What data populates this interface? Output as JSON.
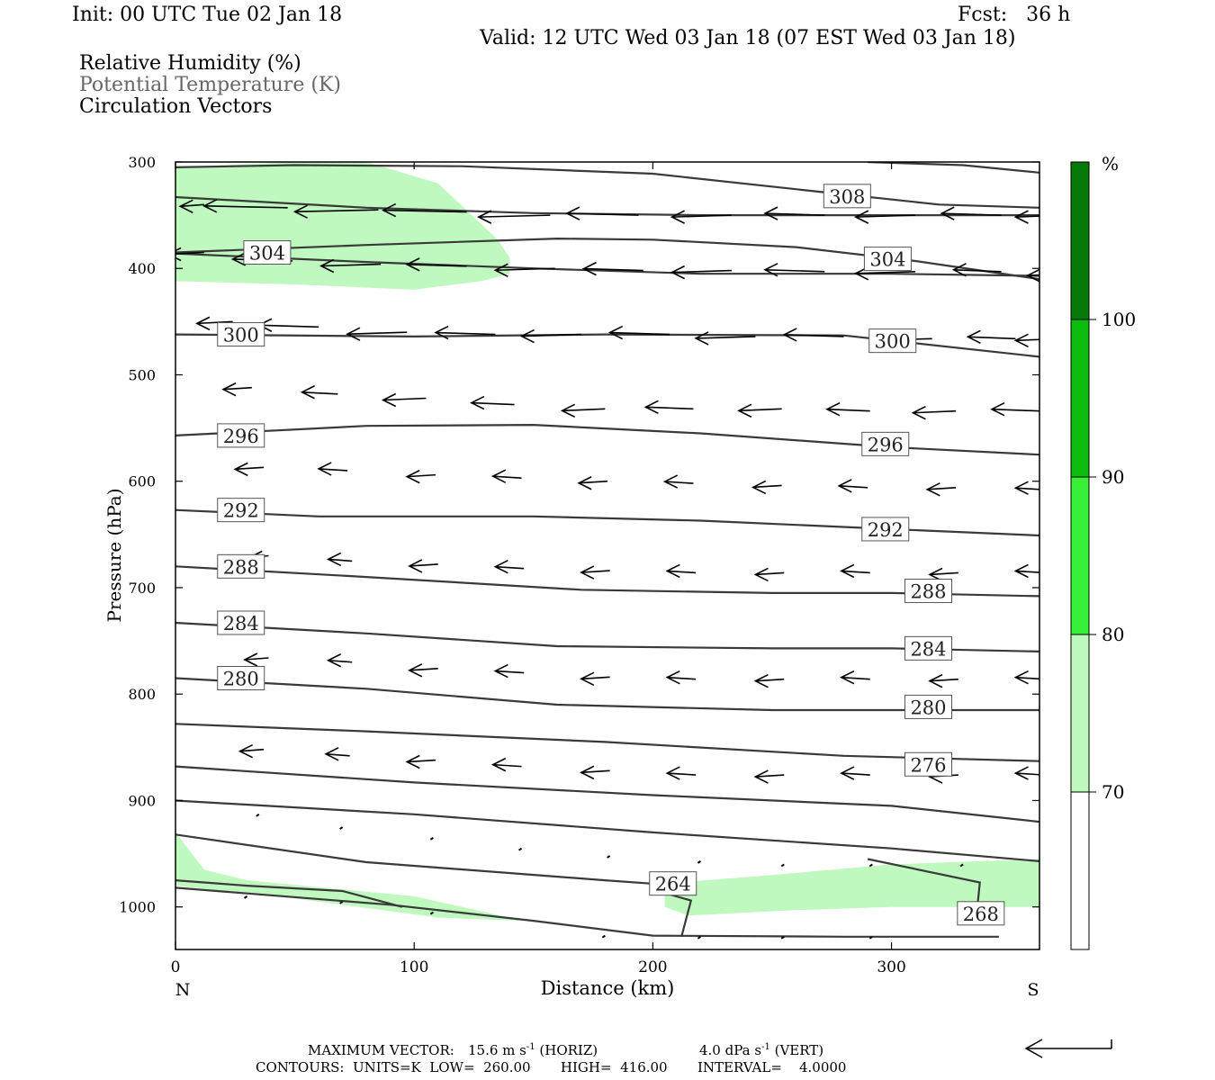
{
  "header": {
    "init": "Init: 00 UTC Tue 02 Jan 18",
    "fcst": "Fcst:   36 h",
    "valid": "Valid: 12 UTC Wed 03 Jan 18 (07 EST Wed 03 Jan 18)"
  },
  "fields": [
    "Relative Humidity (%)",
    "Potential Temperature (K)",
    "Circulation Vectors"
  ],
  "footer": {
    "max_vector_label": "MAXIMUM VECTOR:",
    "max_vector_horiz": "15.6 m s",
    "horiz_tag": "(HORIZ)",
    "max_vector_vert": "4.0 dPa s",
    "vert_tag": "(VERT)",
    "exp": "-1",
    "contours": "CONTOURS:  UNITS=K  LOW=  260.00       HIGH=  416.00       INTERVAL=    4.0000"
  },
  "colors": {
    "rh_70_80": "#bff9bf",
    "rh_80_90": "#39f039",
    "rh_90_100": "#0cbc0c",
    "rh_100_plus": "#05790a",
    "contour": "#3a3a3a"
  },
  "chart_data": {
    "type": "cross-section",
    "xlabel": "Distance (km)",
    "ylabel": "Pressure (hPa)",
    "xlim": [
      0,
      362
    ],
    "ylim": [
      1040,
      300
    ],
    "x_ticks": [
      0,
      100,
      200,
      300
    ],
    "y_ticks": [
      300,
      400,
      500,
      600,
      700,
      800,
      900,
      1000
    ],
    "x_end_labels": [
      "N",
      "S"
    ],
    "colorbar": {
      "unit": "%",
      "ticks": [
        70,
        80,
        90,
        100
      ],
      "colors": [
        "#ffffff",
        "#bff9bf",
        "#39f039",
        "#0cbc0c",
        "#05790a"
      ]
    },
    "rh_regions": [
      {
        "level": "70-80",
        "points": [
          [
            0,
            305
          ],
          [
            50,
            300
          ],
          [
            80,
            300
          ],
          [
            110,
            320
          ],
          [
            135,
            373
          ],
          [
            140,
            390
          ],
          [
            140,
            405
          ],
          [
            128,
            412
          ],
          [
            100,
            420
          ],
          [
            50,
            415
          ],
          [
            0,
            412
          ]
        ]
      },
      {
        "level": "70-80",
        "points": [
          [
            0,
            930
          ],
          [
            12,
            965
          ],
          [
            30,
            975
          ],
          [
            100,
            990
          ],
          [
            140,
            1010
          ],
          [
            145,
            1013
          ],
          [
            110,
            1010
          ],
          [
            50,
            992
          ],
          [
            0,
            980
          ]
        ]
      },
      {
        "level": "70-80",
        "points": [
          [
            205,
            978
          ],
          [
            250,
            970
          ],
          [
            300,
            960
          ],
          [
            362,
            955
          ],
          [
            362,
            1000
          ],
          [
            330,
            1000
          ],
          [
            300,
            1000
          ],
          [
            260,
            1003
          ],
          [
            215,
            1008
          ],
          [
            205,
            1000
          ]
        ]
      }
    ],
    "theta_contours": [
      {
        "label": "308",
        "label_at": [
          272,
          332
        ],
        "points": [
          [
            0,
            305
          ],
          [
            50,
            303
          ],
          [
            120,
            304
          ],
          [
            200,
            311
          ],
          [
            270,
            328
          ],
          [
            320,
            340
          ],
          [
            362,
            343
          ]
        ]
      },
      {
        "label": "",
        "label_at": null,
        "points": [
          [
            290,
            300
          ],
          [
            330,
            303
          ],
          [
            362,
            310
          ]
        ]
      },
      {
        "label": "",
        "label_at": null,
        "points": [
          [
            0,
            333
          ],
          [
            80,
            343
          ],
          [
            150,
            348
          ],
          [
            220,
            350
          ],
          [
            300,
            350
          ],
          [
            362,
            350
          ]
        ]
      },
      {
        "label": "304",
        "label_at": [
          29,
          385
        ],
        "points": [
          [
            0,
            385
          ],
          [
            80,
            378
          ],
          [
            160,
            372
          ],
          [
            200,
            373
          ],
          [
            260,
            380
          ],
          [
            310,
            393
          ],
          [
            362,
            410
          ]
        ]
      },
      {
        "label": "304",
        "label_at": [
          289,
          391
        ],
        "points": [
          [
            0,
            386
          ],
          [
            80,
            394
          ],
          [
            150,
            400
          ],
          [
            220,
            405
          ],
          [
            300,
            405
          ],
          [
            362,
            407
          ]
        ]
      },
      {
        "label": "300",
        "label_at": [
          18,
          462
        ],
        "points": [
          [
            0,
            462
          ],
          [
            100,
            464
          ],
          [
            180,
            462
          ],
          [
            280,
            463
          ],
          [
            362,
            483
          ]
        ]
      },
      {
        "label": "300",
        "label_at": [
          291,
          468
        ],
        "points": []
      },
      {
        "label": "296",
        "label_at": [
          18,
          557
        ],
        "points": [
          [
            0,
            557
          ],
          [
            80,
            548
          ],
          [
            150,
            547
          ],
          [
            220,
            555
          ],
          [
            300,
            568
          ],
          [
            362,
            575
          ]
        ]
      },
      {
        "label": "296",
        "label_at": [
          288,
          565
        ],
        "points": []
      },
      {
        "label": "292",
        "label_at": [
          18,
          627
        ],
        "points": [
          [
            0,
            627
          ],
          [
            60,
            633
          ],
          [
            150,
            633
          ],
          [
            220,
            637
          ],
          [
            300,
            645
          ],
          [
            362,
            651
          ]
        ]
      },
      {
        "label": "292",
        "label_at": [
          288,
          645
        ],
        "points": []
      },
      {
        "label": "288",
        "label_at": [
          18,
          680
        ],
        "points": [
          [
            0,
            680
          ],
          [
            80,
            690
          ],
          [
            170,
            702
          ],
          [
            250,
            705
          ],
          [
            300,
            705
          ],
          [
            362,
            708
          ]
        ]
      },
      {
        "label": "288",
        "label_at": [
          306,
          703
        ],
        "points": []
      },
      {
        "label": "284",
        "label_at": [
          18,
          733
        ],
        "points": [
          [
            0,
            733
          ],
          [
            80,
            743
          ],
          [
            160,
            755
          ],
          [
            250,
            757
          ],
          [
            300,
            757
          ],
          [
            362,
            760
          ]
        ]
      },
      {
        "label": "284",
        "label_at": [
          306,
          757
        ],
        "points": []
      },
      {
        "label": "280",
        "label_at": [
          18,
          785
        ],
        "points": [
          [
            0,
            785
          ],
          [
            80,
            795
          ],
          [
            160,
            810
          ],
          [
            250,
            815
          ],
          [
            300,
            815
          ],
          [
            362,
            815
          ]
        ]
      },
      {
        "label": "280",
        "label_at": [
          306,
          812
        ],
        "points": []
      },
      {
        "label": "",
        "label_at": null,
        "points": [
          [
            0,
            828
          ],
          [
            80,
            835
          ],
          [
            180,
            845
          ],
          [
            280,
            858
          ],
          [
            362,
            863
          ]
        ]
      },
      {
        "label": "276",
        "label_at": [
          306,
          866
        ],
        "points": [
          [
            0,
            868
          ],
          [
            100,
            883
          ],
          [
            200,
            895
          ],
          [
            300,
            905
          ],
          [
            362,
            920
          ]
        ]
      },
      {
        "label": "",
        "label_at": null,
        "points": [
          [
            0,
            900
          ],
          [
            100,
            913
          ],
          [
            200,
            930
          ],
          [
            300,
            945
          ],
          [
            362,
            957
          ]
        ]
      },
      {
        "label": "264",
        "label_at": [
          199,
          978
        ],
        "points": [
          [
            0,
            932
          ],
          [
            80,
            958
          ],
          [
            180,
            975
          ],
          [
            199,
            978
          ]
        ]
      },
      {
        "label": "",
        "label_at": null,
        "points": [
          [
            0,
            975
          ],
          [
            30,
            980
          ],
          [
            70,
            985
          ],
          [
            95,
            1000
          ]
        ]
      },
      {
        "label": "",
        "label_at": null,
        "points": [
          [
            0,
            982
          ],
          [
            90,
            998
          ],
          [
            150,
            1013
          ],
          [
            200,
            1027
          ],
          [
            280,
            1028
          ],
          [
            345,
            1028
          ]
        ]
      },
      {
        "label": "",
        "label_at": null,
        "points": [
          [
            202,
            985
          ],
          [
            216,
            994
          ],
          [
            212,
            1028
          ]
        ]
      },
      {
        "label": "268",
        "label_at": [
          328,
          1006
        ],
        "points": [
          [
            290,
            955
          ],
          [
            337,
            977
          ],
          [
            336,
            1000
          ]
        ]
      }
    ],
    "vector_rows": [
      {
        "p": 350,
        "arrows": [
          [
            0,
            340,
            -10
          ],
          [
            35,
            343,
            -35
          ],
          [
            73,
            345,
            -35
          ],
          [
            110,
            347,
            -35
          ],
          [
            145,
            350,
            -30
          ],
          [
            182,
            350,
            -30
          ],
          [
            221,
            350,
            -25
          ],
          [
            260,
            350,
            -25
          ],
          [
            298,
            350,
            -25
          ],
          [
            334,
            350,
            -25
          ],
          [
            360,
            350,
            -20
          ]
        ]
      },
      {
        "p": 395,
        "arrows": [
          [
            0,
            385,
            -15
          ],
          [
            37,
            393,
            -25
          ],
          [
            74,
            396,
            -25
          ],
          [
            110,
            398,
            -25
          ],
          [
            147,
            400,
            -25
          ],
          [
            184,
            402,
            -25
          ],
          [
            221,
            402,
            -25
          ],
          [
            260,
            403,
            -25
          ],
          [
            298,
            403,
            -25
          ],
          [
            334,
            403,
            -20
          ],
          [
            360,
            405,
            -15
          ]
        ]
      },
      {
        "p": 455,
        "arrows": [
          [
            12,
            450,
            -15
          ],
          [
            48,
            455,
            -25
          ],
          [
            85,
            460,
            -25
          ],
          [
            122,
            462,
            -25
          ],
          [
            158,
            462,
            -25
          ],
          [
            195,
            462,
            -25
          ],
          [
            231,
            464,
            -25
          ],
          [
            268,
            464,
            -25
          ],
          [
            305,
            466,
            -25
          ],
          [
            340,
            466,
            -20
          ],
          [
            360,
            466,
            -20
          ]
        ]
      },
      {
        "p": 525,
        "arrows": [
          [
            20,
            512,
            -12
          ],
          [
            56,
            518,
            -15
          ],
          [
            93,
            522,
            -18
          ],
          [
            130,
            528,
            -18
          ],
          [
            168,
            532,
            -18
          ],
          [
            205,
            532,
            -20
          ],
          [
            242,
            532,
            -18
          ],
          [
            279,
            534,
            -18
          ],
          [
            315,
            534,
            -18
          ],
          [
            350,
            534,
            -20
          ]
        ]
      },
      {
        "p": 590,
        "arrows": [
          [
            25,
            587,
            -12
          ],
          [
            60,
            590,
            -12
          ],
          [
            97,
            594,
            -12
          ],
          [
            133,
            597,
            -12
          ],
          [
            169,
            600,
            -12
          ],
          [
            205,
            602,
            -12
          ],
          [
            242,
            604,
            -12
          ],
          [
            278,
            606,
            -12
          ],
          [
            315,
            606,
            -12
          ],
          [
            352,
            608,
            -12
          ]
        ]
      },
      {
        "p": 680,
        "arrows": [
          [
            27,
            670,
            -8
          ],
          [
            62,
            675,
            -10
          ],
          [
            98,
            678,
            -12
          ],
          [
            134,
            682,
            -12
          ],
          [
            170,
            684,
            -12
          ],
          [
            206,
            686,
            -12
          ],
          [
            243,
            686,
            -12
          ],
          [
            279,
            686,
            -12
          ],
          [
            316,
            686,
            -12
          ],
          [
            352,
            686,
            -12
          ]
        ]
      },
      {
        "p": 770,
        "arrows": [
          [
            27,
            766,
            -10
          ],
          [
            62,
            770,
            -10
          ],
          [
            98,
            776,
            -12
          ],
          [
            134,
            780,
            -12
          ],
          [
            170,
            784,
            -12
          ],
          [
            206,
            786,
            -12
          ],
          [
            243,
            786,
            -12
          ],
          [
            279,
            786,
            -12
          ],
          [
            316,
            786,
            -12
          ],
          [
            352,
            786,
            -12
          ]
        ]
      },
      {
        "p": 850,
        "arrows": [
          [
            25,
            852,
            -10
          ],
          [
            61,
            858,
            -10
          ],
          [
            97,
            862,
            -12
          ],
          [
            133,
            868,
            -12
          ],
          [
            170,
            872,
            -12
          ],
          [
            206,
            876,
            -12
          ],
          [
            243,
            876,
            -12
          ],
          [
            279,
            876,
            -12
          ],
          [
            316,
            876,
            -12
          ],
          [
            352,
            876,
            -12
          ]
        ]
      }
    ]
  }
}
